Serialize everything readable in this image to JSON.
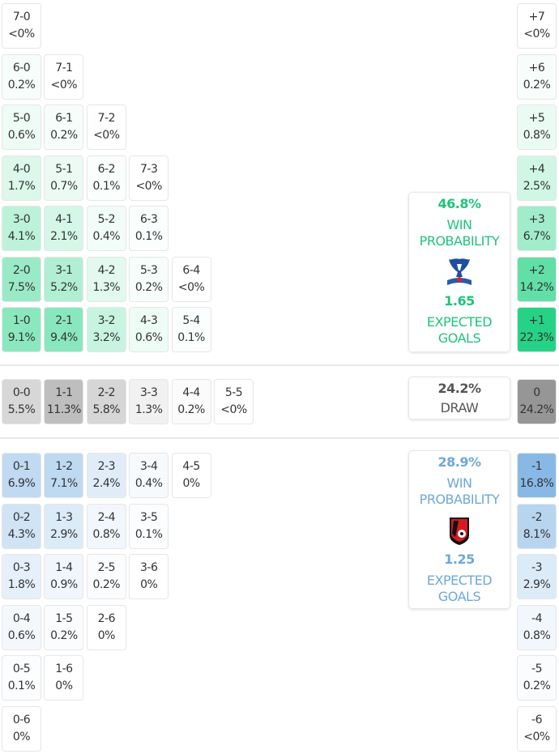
{
  "colors": {
    "home": "#26d386",
    "away": "#6eaae1",
    "draw": "#969696",
    "home_text": "#1fc47c",
    "away_text": "#6ea8d9",
    "draw_text": "#555555"
  },
  "home_scores": [
    {
      "score": "1-0",
      "pct": "9.1%"
    },
    {
      "score": "2-1",
      "pct": "9.4%"
    },
    {
      "score": "3-2",
      "pct": "3.2%"
    },
    {
      "score": "4-3",
      "pct": "0.6%"
    },
    {
      "score": "5-4",
      "pct": "0.1%"
    },
    {
      "score": "2-0",
      "pct": "7.5%"
    },
    {
      "score": "3-1",
      "pct": "5.2%"
    },
    {
      "score": "4-2",
      "pct": "1.3%"
    },
    {
      "score": "5-3",
      "pct": "0.2%"
    },
    {
      "score": "6-4",
      "pct": "<0%"
    },
    {
      "score": "3-0",
      "pct": "4.1%"
    },
    {
      "score": "4-1",
      "pct": "2.1%"
    },
    {
      "score": "5-2",
      "pct": "0.4%"
    },
    {
      "score": "6-3",
      "pct": "0.1%"
    },
    {
      "score": "4-0",
      "pct": "1.7%"
    },
    {
      "score": "5-1",
      "pct": "0.7%"
    },
    {
      "score": "6-2",
      "pct": "0.1%"
    },
    {
      "score": "7-3",
      "pct": "<0%"
    },
    {
      "score": "5-0",
      "pct": "0.6%"
    },
    {
      "score": "6-1",
      "pct": "0.2%"
    },
    {
      "score": "7-2",
      "pct": "<0%"
    },
    {
      "score": "6-0",
      "pct": "0.2%"
    },
    {
      "score": "7-1",
      "pct": "<0%"
    },
    {
      "score": "7-0",
      "pct": "<0%"
    }
  ],
  "draw_scores": [
    {
      "score": "0-0",
      "pct": "5.5%"
    },
    {
      "score": "1-1",
      "pct": "11.3%"
    },
    {
      "score": "2-2",
      "pct": "5.8%"
    },
    {
      "score": "3-3",
      "pct": "1.3%"
    },
    {
      "score": "4-4",
      "pct": "0.2%"
    },
    {
      "score": "5-5",
      "pct": "<0%"
    }
  ],
  "away_scores": [
    {
      "score": "0-1",
      "pct": "6.9%"
    },
    {
      "score": "1-2",
      "pct": "7.1%"
    },
    {
      "score": "2-3",
      "pct": "2.4%"
    },
    {
      "score": "3-4",
      "pct": "0.4%"
    },
    {
      "score": "4-5",
      "pct": "0%"
    },
    {
      "score": "0-2",
      "pct": "4.3%"
    },
    {
      "score": "1-3",
      "pct": "2.9%"
    },
    {
      "score": "2-4",
      "pct": "0.8%"
    },
    {
      "score": "3-5",
      "pct": "0.1%"
    },
    {
      "score": "0-3",
      "pct": "1.8%"
    },
    {
      "score": "1-4",
      "pct": "0.9%"
    },
    {
      "score": "2-5",
      "pct": "0.2%"
    },
    {
      "score": "3-6",
      "pct": "0%"
    },
    {
      "score": "0-4",
      "pct": "0.6%"
    },
    {
      "score": "1-5",
      "pct": "0.2%"
    },
    {
      "score": "2-6",
      "pct": "0%"
    },
    {
      "score": "0-5",
      "pct": "0.1%"
    },
    {
      "score": "1-6",
      "pct": "0%"
    },
    {
      "score": "0-6",
      "pct": "0%"
    }
  ],
  "margins": [
    {
      "label": "+7",
      "pct": "<0%"
    },
    {
      "label": "+6",
      "pct": "0.2%"
    },
    {
      "label": "+5",
      "pct": "0.8%"
    },
    {
      "label": "+4",
      "pct": "2.5%"
    },
    {
      "label": "+3",
      "pct": "6.7%"
    },
    {
      "label": "+2",
      "pct": "14.2%"
    },
    {
      "label": "+1",
      "pct": "22.3%"
    },
    {
      "label": "0",
      "pct": "24.2%"
    },
    {
      "label": "-1",
      "pct": "16.8%"
    },
    {
      "label": "-2",
      "pct": "8.1%"
    },
    {
      "label": "-3",
      "pct": "2.9%"
    },
    {
      "label": "-4",
      "pct": "0.8%"
    },
    {
      "label": "-5",
      "pct": "0.2%"
    },
    {
      "label": "-6",
      "pct": "<0%"
    }
  ],
  "home_summary": {
    "win_pct": "46.8%",
    "win_label_1": "WIN",
    "win_label_2": "PROBABILITY",
    "xg": "1.65",
    "xg_label_1": "EXPECTED",
    "xg_label_2": "GOALS",
    "logo": "crystal-palace-eagle-crest"
  },
  "draw_summary": {
    "pct": "24.2%",
    "label": "DRAW"
  },
  "away_summary": {
    "win_pct": "28.9%",
    "win_label_1": "WIN",
    "win_label_2": "PROBABILITY",
    "xg": "1.25",
    "xg_label_1": "EXPECTED",
    "xg_label_2": "GOALS",
    "logo": "bournemouth-cherries-crest"
  }
}
